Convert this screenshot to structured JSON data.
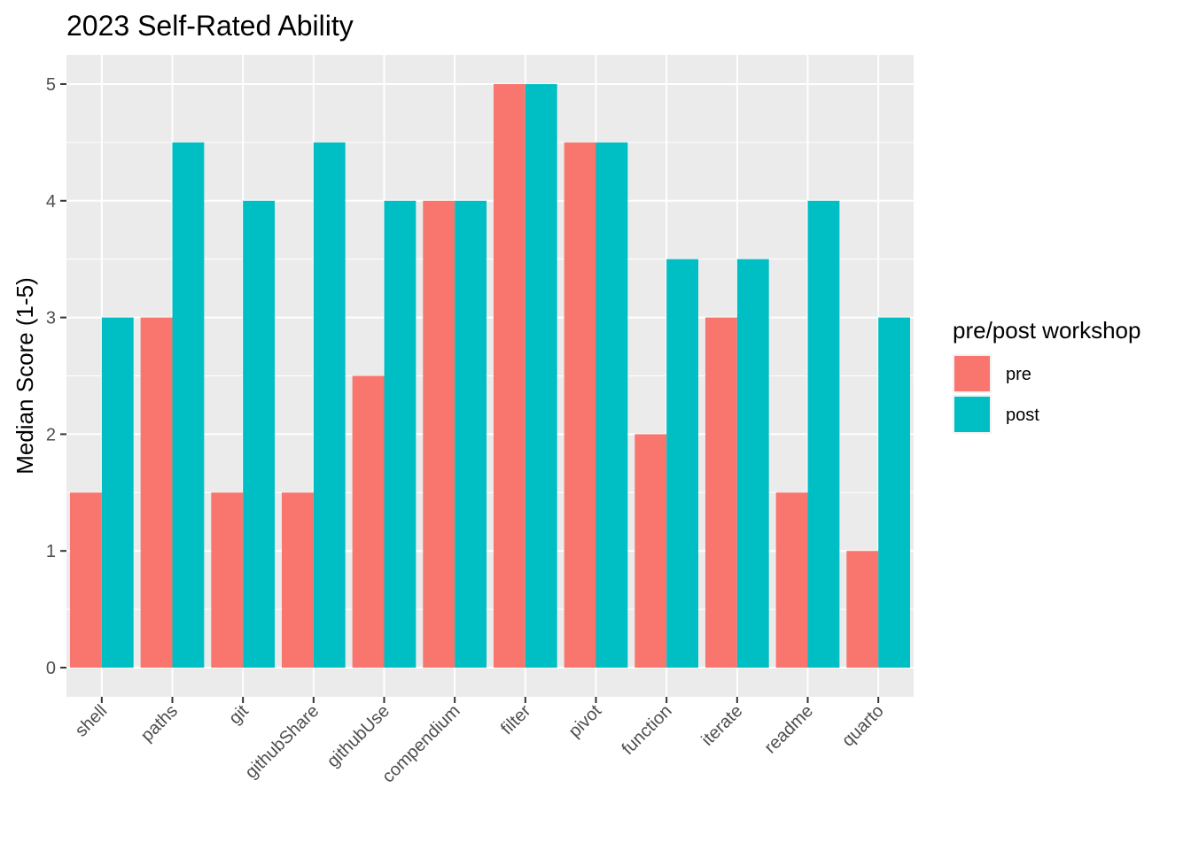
{
  "chart_data": {
    "type": "bar",
    "title": "2023 Self-Rated Ability",
    "xlabel": "",
    "ylabel": "Median Score (1-5)",
    "ylim": [
      -0.25,
      5.25
    ],
    "yticks": [
      0,
      1,
      2,
      3,
      4,
      5
    ],
    "categories": [
      "shell",
      "paths",
      "git",
      "githubShare",
      "githubUse",
      "compendium",
      "filter",
      "pivot",
      "function",
      "iterate",
      "readme",
      "quarto"
    ],
    "series": [
      {
        "name": "pre",
        "color": "#F8766D",
        "values": [
          1.5,
          3,
          1.5,
          1.5,
          2.5,
          4,
          5,
          4.5,
          2,
          3,
          1.5,
          1
        ]
      },
      {
        "name": "post",
        "color": "#00BFC4",
        "values": [
          3,
          4.5,
          4,
          4.5,
          4,
          4,
          5,
          4.5,
          3.5,
          3.5,
          4,
          3
        ]
      }
    ],
    "legend": {
      "title": "pre/post workshop",
      "position": "right"
    },
    "grid": true,
    "panel_background": "#EBEBEB",
    "grid_color": "#FFFFFF"
  }
}
